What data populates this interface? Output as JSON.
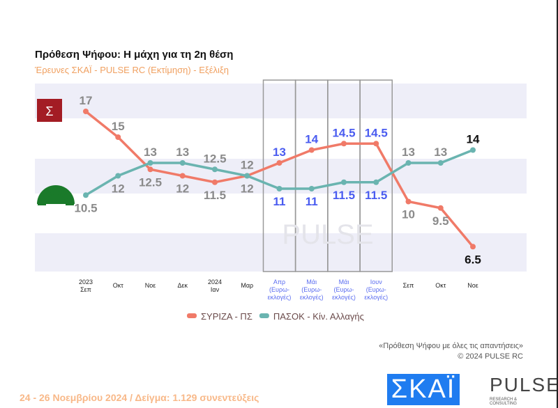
{
  "title": "Πρόθεση Ψήφου: Η μάχη για τη 2η θέση",
  "subtitle": "Έρευνες ΣΚΑΪ - PULSE RC   (Εκτίμηση) - Εξέλιξη",
  "note_line1": "«Πρόθεση Ψήφου με όλες τις απαντήσεις»",
  "note_line2": "©  2024  PULSE RC",
  "footer": "24 - 26 Νοεμβρίου 2024  /  Δείγμα:  1.129 συνεντεύξεις",
  "logos": {
    "skai": "ΣΚΑΪ",
    "pulse": "PULSE",
    "pulse_sub": "RESEARCH & CONSULTING",
    "watermark": "PULSE"
  },
  "chart_data": {
    "type": "line",
    "categories": [
      [
        "2023",
        "Σεπ"
      ],
      [
        "Οκτ"
      ],
      [
        "Νοε"
      ],
      [
        "Δεκ"
      ],
      [
        "2024",
        "Ιαν"
      ],
      [
        "Μαρ"
      ],
      [
        "Απρ",
        "(Ευρω-",
        "εκλογές)"
      ],
      [
        "Μάι",
        "(Ευρω-",
        "εκλογές)"
      ],
      [
        "Μάι",
        "(Ευρω-",
        "εκλογές)"
      ],
      [
        "Ιουν",
        "(Ευρω-",
        "εκλογές)"
      ],
      [
        "Σεπ"
      ],
      [
        "Οκτ"
      ],
      [
        "Νοε"
      ]
    ],
    "highlighted_categories": [
      6,
      7,
      8,
      9
    ],
    "series": [
      {
        "name": "ΣΥΡΙΖΑ - ΠΣ",
        "color": "#f07a68",
        "values": [
          17,
          15,
          12.5,
          12,
          11.5,
          12,
          13,
          14,
          14.5,
          14.5,
          10,
          9.5,
          6.5
        ]
      },
      {
        "name": "ΠΑΣΟΚ - Κίν. Αλλαγής",
        "color": "#6ab4b0",
        "values": [
          10.5,
          12,
          13,
          13,
          12.5,
          12,
          11,
          11,
          11.5,
          11.5,
          13,
          13,
          14
        ]
      }
    ],
    "label_colors": {
      "default": "#8a8a8a",
      "highlight": "#4a5cf0",
      "latest": "#111111"
    },
    "band_color": "#eeeef8",
    "legend_position": "bottom"
  }
}
